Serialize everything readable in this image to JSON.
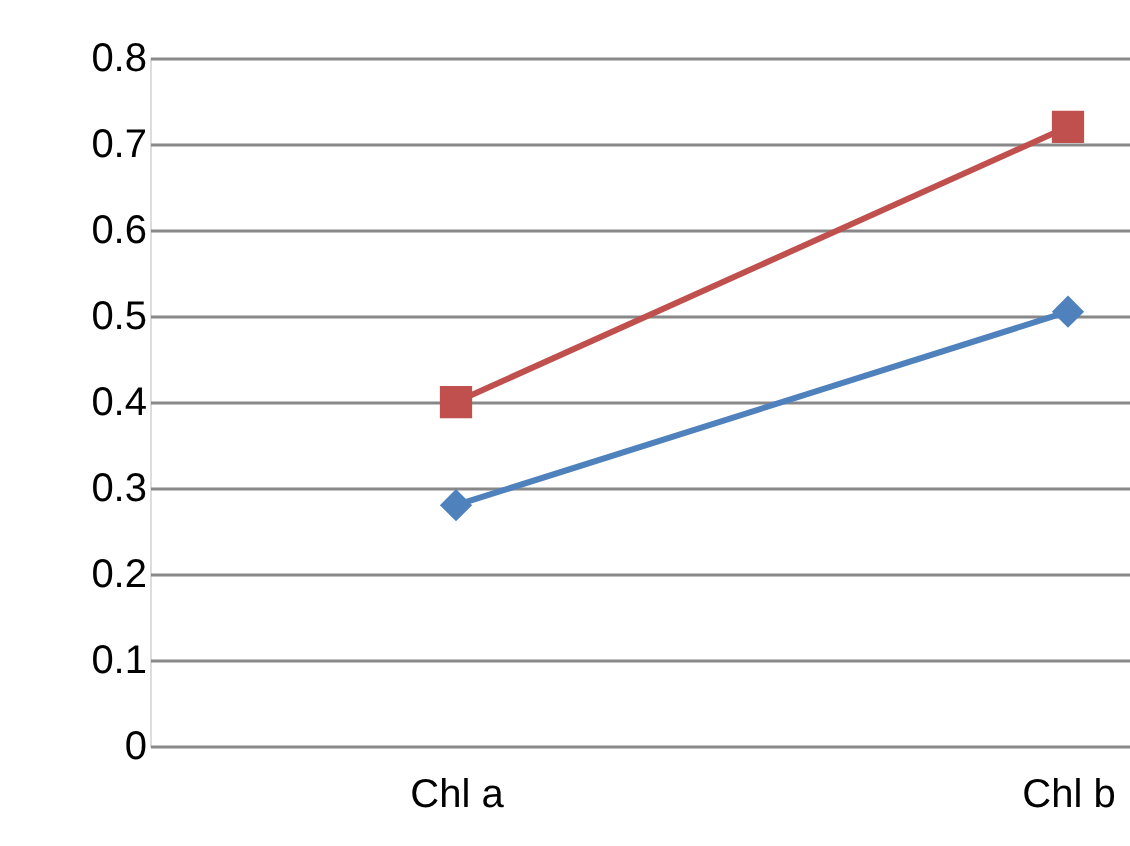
{
  "chart_data": {
    "type": "line",
    "categories": [
      "Chl a",
      "Chl b"
    ],
    "series": [
      {
        "color": "#4f81bd",
        "marker": "diamond",
        "values": [
          0.28,
          0.505
        ]
      },
      {
        "color": "#c0504d",
        "marker": "square",
        "values": [
          0.4,
          0.72
        ]
      }
    ],
    "ylim": [
      0,
      0.8
    ],
    "yticks": [
      0,
      0.1,
      0.2,
      0.3,
      0.4,
      0.5,
      0.6,
      0.7,
      0.8
    ],
    "grid": "y",
    "line_style": "solid"
  }
}
